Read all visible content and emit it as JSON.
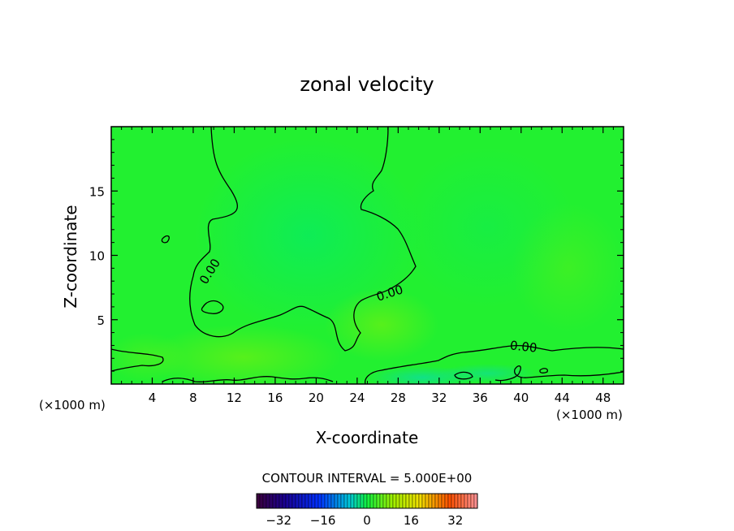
{
  "chart_data": {
    "type": "heatmap",
    "title": "zonal velocity",
    "xlabel": "X-coordinate",
    "ylabel": "Z-coordinate",
    "x_unit": "(×1000 m)",
    "y_unit": "(×1000 m)",
    "xlim": [
      0,
      50
    ],
    "ylim": [
      0,
      20
    ],
    "x_ticks": [
      4,
      8,
      12,
      16,
      20,
      24,
      28,
      32,
      36,
      40,
      44,
      48
    ],
    "y_ticks": [
      5,
      10,
      15
    ],
    "contour_interval_label": "CONTOUR INTERVAL = 5.000E+00",
    "contour_labels": [
      "0.00",
      "0.00",
      "0.00"
    ],
    "colorbar": {
      "range": [
        -40,
        40
      ],
      "tick_values": [
        -32,
        -16,
        0,
        16,
        32
      ],
      "tick_labels": [
        "−32",
        "−16",
        "0",
        "16",
        "32"
      ]
    },
    "colors": {
      "field_base": "#22f030",
      "field_negative_tint": "#10f050",
      "field_positive_tint": "#50f020"
    }
  }
}
